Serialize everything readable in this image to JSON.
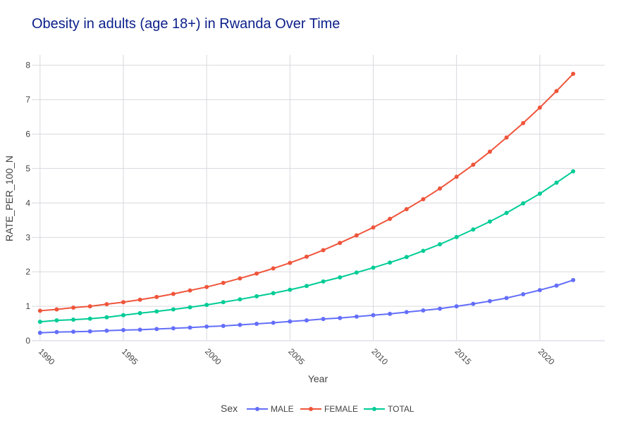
{
  "chart_data": {
    "type": "line",
    "title": "Obesity in adults (age 18+) in Rwanda Over Time",
    "xlabel": "Year",
    "ylabel": "RATE_PER_100_N",
    "xlim": [
      1989.5,
      2023.9
    ],
    "ylim": [
      0,
      8.3
    ],
    "x_ticks": [
      1990,
      1995,
      2000,
      2005,
      2010,
      2015,
      2020
    ],
    "y_ticks": [
      0,
      1,
      2,
      3,
      4,
      5,
      6,
      7,
      8
    ],
    "grid": true,
    "legend_title": "Sex",
    "legend_position": "bottom-center",
    "x": [
      1990,
      1991,
      1992,
      1993,
      1994,
      1995,
      1996,
      1997,
      1998,
      1999,
      2000,
      2001,
      2002,
      2003,
      2004,
      2005,
      2006,
      2007,
      2008,
      2009,
      2010,
      2011,
      2012,
      2013,
      2014,
      2015,
      2016,
      2017,
      2018,
      2019,
      2020,
      2021,
      2022
    ],
    "series": [
      {
        "name": "MALE",
        "color": "#636efa",
        "values": [
          0.23,
          0.25,
          0.26,
          0.27,
          0.29,
          0.31,
          0.32,
          0.34,
          0.36,
          0.38,
          0.41,
          0.43,
          0.46,
          0.49,
          0.52,
          0.56,
          0.59,
          0.63,
          0.66,
          0.7,
          0.74,
          0.78,
          0.83,
          0.88,
          0.93,
          1.0,
          1.07,
          1.15,
          1.24,
          1.35,
          1.47,
          1.6,
          1.76
        ]
      },
      {
        "name": "FEMALE",
        "color": "#ef553b",
        "values": [
          0.87,
          0.91,
          0.96,
          1.0,
          1.06,
          1.12,
          1.19,
          1.27,
          1.36,
          1.46,
          1.56,
          1.68,
          1.81,
          1.95,
          2.1,
          2.26,
          2.44,
          2.63,
          2.84,
          3.06,
          3.29,
          3.54,
          3.82,
          4.11,
          4.42,
          4.76,
          5.11,
          5.49,
          5.9,
          6.32,
          6.77,
          7.25,
          7.75
        ]
      },
      {
        "name": "TOTAL",
        "color": "#00cc96",
        "values": [
          0.55,
          0.59,
          0.61,
          0.64,
          0.68,
          0.74,
          0.8,
          0.85,
          0.91,
          0.97,
          1.04,
          1.12,
          1.2,
          1.29,
          1.38,
          1.48,
          1.59,
          1.72,
          1.84,
          1.98,
          2.12,
          2.27,
          2.43,
          2.61,
          2.8,
          3.01,
          3.23,
          3.46,
          3.71,
          3.99,
          4.27,
          4.59,
          4.92
        ]
      }
    ]
  }
}
